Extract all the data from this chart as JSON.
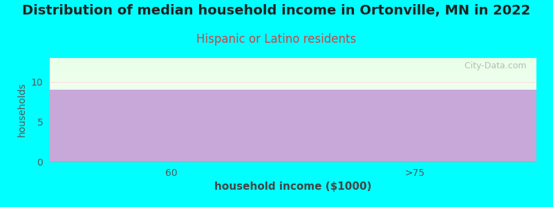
{
  "title": "Distribution of median household income in Ortonville, MN in 2022",
  "subtitle": "Hispanic or Latino residents",
  "xlabel": "household income ($1000)",
  "ylabel": "households",
  "categories": [
    "60",
    ">75"
  ],
  "values": [
    9,
    9
  ],
  "bar_color": "#c8a8d8",
  "bar_edgecolor": "#c8a8d8",
  "background_color": "#00ffff",
  "plot_bg_top": "#e8ffe8",
  "plot_bg_bottom": "#ffffff",
  "ylim": [
    0,
    13
  ],
  "yticks": [
    0,
    5,
    10
  ],
  "title_fontsize": 14,
  "subtitle_fontsize": 12,
  "subtitle_color": "#cc4444",
  "xlabel_fontsize": 11,
  "ylabel_fontsize": 10,
  "tick_fontsize": 10,
  "watermark": "  City-Data.com",
  "bar_width": 1.0
}
